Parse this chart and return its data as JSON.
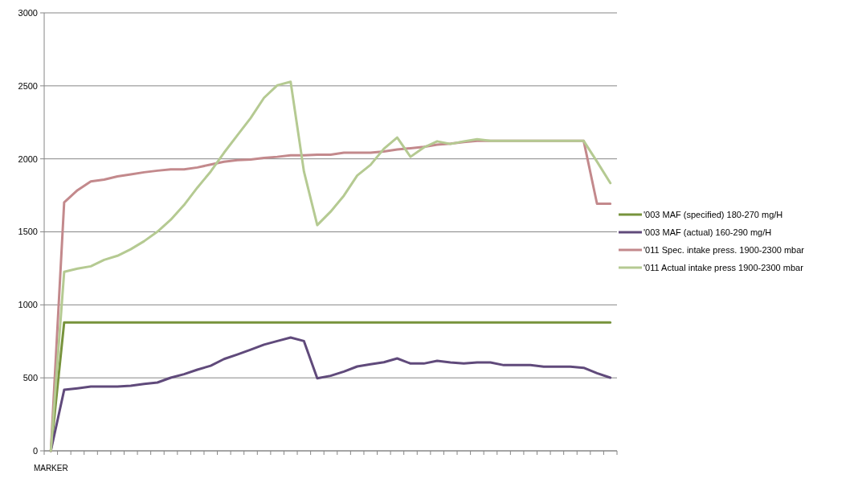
{
  "chart_data": {
    "type": "line",
    "categories": [
      "MARKER",
      null,
      null,
      null,
      null,
      null,
      null,
      null,
      null,
      null,
      null,
      null,
      null,
      null,
      null,
      null,
      null,
      null,
      null,
      null,
      null,
      null,
      null,
      null,
      null,
      null,
      null,
      null,
      null,
      null,
      null,
      null,
      null,
      null,
      null,
      null,
      null,
      null,
      null,
      null,
      null,
      null,
      null
    ],
    "series": [
      {
        "name": "'003 MAF (specified) 180-270 mg/H",
        "color": "#77933c",
        "values": [
          0,
          880,
          880,
          880,
          880,
          880,
          880,
          880,
          880,
          880,
          880,
          880,
          880,
          880,
          880,
          880,
          880,
          880,
          880,
          880,
          880,
          880,
          880,
          880,
          880,
          880,
          880,
          880,
          880,
          880,
          880,
          880,
          880,
          880,
          880,
          880,
          880,
          880,
          880,
          880,
          880,
          880,
          880
        ]
      },
      {
        "name": "'003 MAF (actual)  160-290 mg/H",
        "color": "#604a7b",
        "values": [
          0,
          418,
          428,
          440,
          440,
          440,
          446,
          458,
          468,
          501,
          525,
          556,
          583,
          629,
          660,
          693,
          727,
          752,
          776,
          752,
          497,
          514,
          543,
          578,
          593,
          607,
          633,
          598,
          598,
          616,
          605,
          598,
          605,
          605,
          587,
          587,
          587,
          576,
          576,
          576,
          569,
          532,
          501
        ]
      },
      {
        "name": "'011 Spec. intake  press. 1900-2300 mbar",
        "color": "#c3898c",
        "values": [
          0,
          1702,
          1785,
          1846,
          1858,
          1880,
          1893,
          1908,
          1919,
          1928,
          1928,
          1941,
          1961,
          1980,
          1991,
          1996,
          2007,
          2014,
          2024,
          2024,
          2029,
          2029,
          2042,
          2042,
          2042,
          2051,
          2064,
          2073,
          2082,
          2097,
          2104,
          2115,
          2123,
          2123,
          2123,
          2123,
          2123,
          2123,
          2123,
          2123,
          2123,
          1693,
          1693
        ]
      },
      {
        "name": "'011 Actual intake press 1900-2300 mbar",
        "color": "#b5ca92",
        "values": [
          0,
          1226,
          1248,
          1264,
          1308,
          1336,
          1381,
          1436,
          1501,
          1583,
          1684,
          1803,
          1913,
          2042,
          2161,
          2280,
          2418,
          2504,
          2528,
          1913,
          1546,
          1638,
          1748,
          1886,
          1959,
          2069,
          2146,
          2014,
          2078,
          2120,
          2102,
          2120,
          2134,
          2123,
          2123,
          2123,
          2123,
          2123,
          2123,
          2123,
          2123,
          1981,
          1834
        ]
      }
    ],
    "ylim": [
      0,
      3000
    ],
    "yticks": [
      0,
      500,
      1000,
      1500,
      2000,
      2500,
      3000
    ],
    "grid": "y",
    "legend": "right",
    "marker": "none",
    "line_style": "solid"
  }
}
